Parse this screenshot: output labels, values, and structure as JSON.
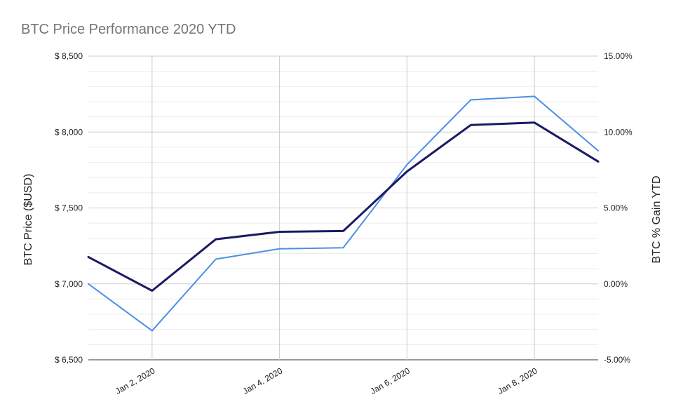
{
  "chart_data": {
    "type": "line",
    "title": "BTC Price Performance 2020 YTD",
    "y_left_label": "BTC Price ($USD)",
    "y_right_label": "BTC % Gain YTD",
    "y_left_ticks": [
      "$ 6,500",
      "$ 7,000",
      "$ 7,500",
      "$ 8,000",
      "$ 8,500"
    ],
    "y_right_ticks": [
      "-5.00%",
      "0.00%",
      "5.00%",
      "10.00%",
      "15.00%"
    ],
    "x_tick_labels": [
      "Jan 2, 2020",
      "Jan 4, 2020",
      "Jan 6, 2020",
      "Jan 8, 2020"
    ],
    "x_tick_dates": [
      "2020-01-02",
      "2020-01-04",
      "2020-01-06",
      "2020-01-08"
    ],
    "x": [
      "2020-01-01",
      "2020-01-02",
      "2020-01-03",
      "2020-01-04",
      "2020-01-05",
      "2020-01-06",
      "2020-01-07",
      "2020-01-08",
      "2020-01-09"
    ],
    "ylim_left": [
      6500,
      8500
    ],
    "ylim_right": [
      -5,
      15
    ],
    "grid": true,
    "series": [
      {
        "axis": "left",
        "color": "#1a1a64",
        "values": [
          7177,
          6955,
          7294,
          7343,
          7348,
          7740,
          8046,
          8062,
          7806
        ]
      },
      {
        "axis": "right",
        "color": "#4a8fe7",
        "values": [
          0.0,
          -3.09,
          1.63,
          2.31,
          2.38,
          7.85,
          12.12,
          12.35,
          8.77
        ]
      }
    ]
  }
}
